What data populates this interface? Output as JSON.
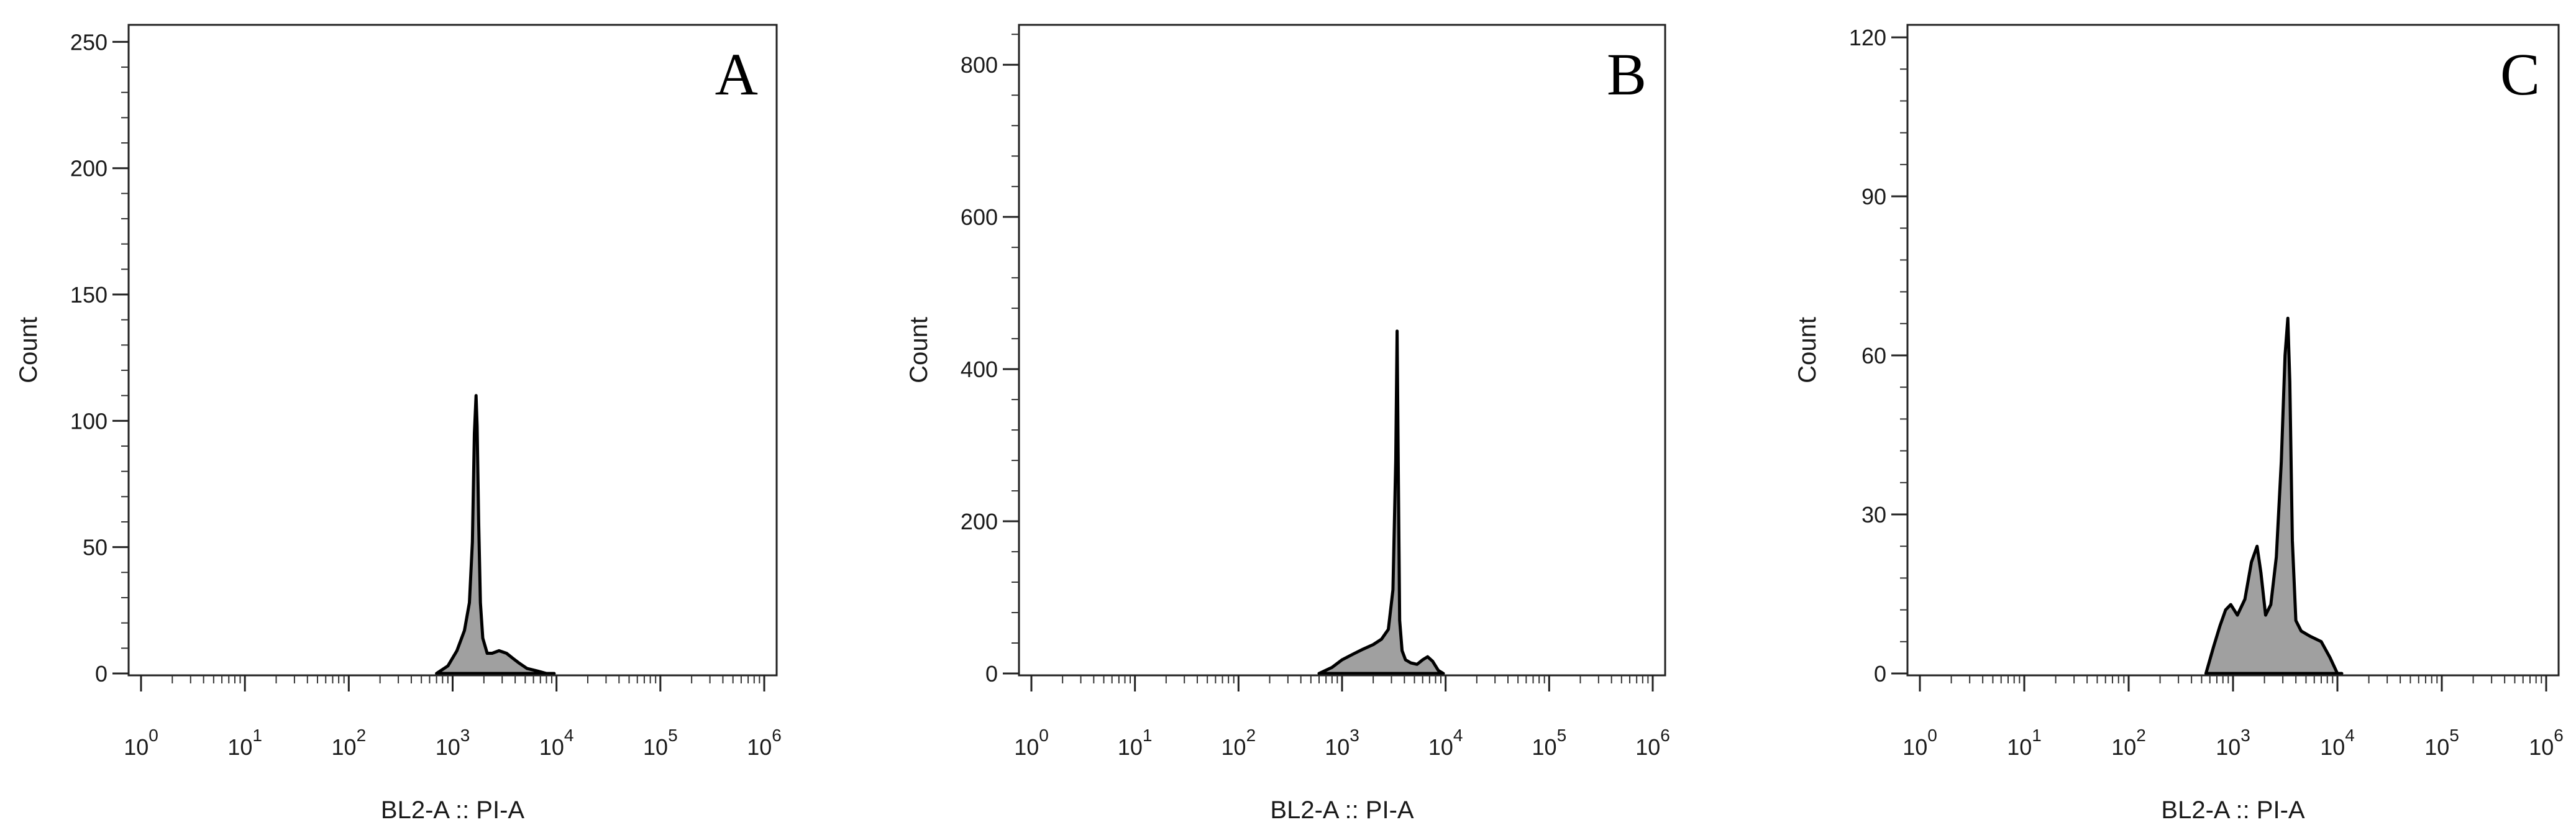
{
  "chart_data": [
    {
      "type": "area",
      "panel_label": "A",
      "xlabel": "BL2-A :: PI-A",
      "ylabel": "Count",
      "xscale": "log",
      "xlim": [
        1,
        1000000
      ],
      "xticks": [
        {
          "value": 1,
          "base": "10",
          "exp": "0"
        },
        {
          "value": 10,
          "base": "10",
          "exp": "1"
        },
        {
          "value": 100,
          "base": "10",
          "exp": "2"
        },
        {
          "value": 1000,
          "base": "10",
          "exp": "3"
        },
        {
          "value": 10000,
          "base": "10",
          "exp": "4"
        },
        {
          "value": 100000,
          "base": "10",
          "exp": "5"
        },
        {
          "value": 1000000,
          "base": "10",
          "exp": "6"
        }
      ],
      "ylim": [
        0,
        256
      ],
      "yticks": [
        0,
        50,
        100,
        150,
        200,
        250
      ],
      "grid": false,
      "fill_color": "#a0a0a0",
      "line_color": "#000000",
      "x": [
        700,
        900,
        1100,
        1300,
        1450,
        1550,
        1620,
        1680,
        1720,
        1780,
        1850,
        1950,
        2150,
        2400,
        2800,
        3300,
        3800,
        4400,
        5200,
        6500,
        8000,
        9500
      ],
      "y": [
        0,
        3,
        9,
        17,
        28,
        52,
        95,
        110,
        98,
        60,
        28,
        14,
        8,
        8,
        9,
        8,
        6,
        4,
        2,
        1,
        0,
        0
      ]
    },
    {
      "type": "area",
      "panel_label": "B",
      "xlabel": "BL2-A :: PI-A",
      "ylabel": "Count",
      "xscale": "log",
      "xlim": [
        1,
        1000000
      ],
      "xticks": [
        {
          "value": 1,
          "base": "10",
          "exp": "0"
        },
        {
          "value": 10,
          "base": "10",
          "exp": "1"
        },
        {
          "value": 100,
          "base": "10",
          "exp": "2"
        },
        {
          "value": 1000,
          "base": "10",
          "exp": "3"
        },
        {
          "value": 10000,
          "base": "10",
          "exp": "4"
        },
        {
          "value": 100000,
          "base": "10",
          "exp": "5"
        },
        {
          "value": 1000000,
          "base": "10",
          "exp": "6"
        }
      ],
      "ylim": [
        0,
        850
      ],
      "yticks": [
        0,
        200,
        400,
        600,
        800
      ],
      "grid": false,
      "fill_color": "#a0a0a0",
      "line_color": "#000000",
      "x": [
        600,
        800,
        1000,
        1300,
        1600,
        2000,
        2400,
        2800,
        3100,
        3300,
        3400,
        3500,
        3600,
        3800,
        4100,
        4600,
        5300,
        6000,
        6700,
        7500,
        8500,
        9500
      ],
      "y": [
        0,
        8,
        18,
        26,
        32,
        38,
        45,
        58,
        110,
        280,
        450,
        250,
        70,
        30,
        18,
        14,
        12,
        18,
        22,
        16,
        4,
        0
      ]
    },
    {
      "type": "area",
      "panel_label": "C",
      "xlabel": "BL2-A :: PI-A",
      "ylabel": "Count",
      "xscale": "log",
      "xlim": [
        1,
        1000000
      ],
      "xticks": [
        {
          "value": 1,
          "base": "10",
          "exp": "0"
        },
        {
          "value": 10,
          "base": "10",
          "exp": "1"
        },
        {
          "value": 100,
          "base": "10",
          "exp": "2"
        },
        {
          "value": 1000,
          "base": "10",
          "exp": "3"
        },
        {
          "value": 10000,
          "base": "10",
          "exp": "4"
        },
        {
          "value": 100000,
          "base": "10",
          "exp": "5"
        },
        {
          "value": 1000000,
          "base": "10",
          "exp": "6"
        }
      ],
      "ylim": [
        0,
        122
      ],
      "yticks": [
        0,
        30,
        60,
        90,
        120
      ],
      "grid": false,
      "fill_color": "#a0a0a0",
      "line_color": "#000000",
      "x": [
        550,
        650,
        750,
        850,
        950,
        1100,
        1300,
        1500,
        1700,
        1850,
        2050,
        2300,
        2600,
        2900,
        3150,
        3350,
        3500,
        3700,
        4000,
        4500,
        5500,
        7000,
        8500,
        10000,
        11000
      ],
      "y": [
        0,
        5,
        9,
        12,
        13,
        11,
        14,
        21,
        24,
        19,
        11,
        13,
        22,
        40,
        60,
        67,
        55,
        25,
        10,
        8,
        7,
        6,
        3,
        0,
        0
      ]
    }
  ]
}
